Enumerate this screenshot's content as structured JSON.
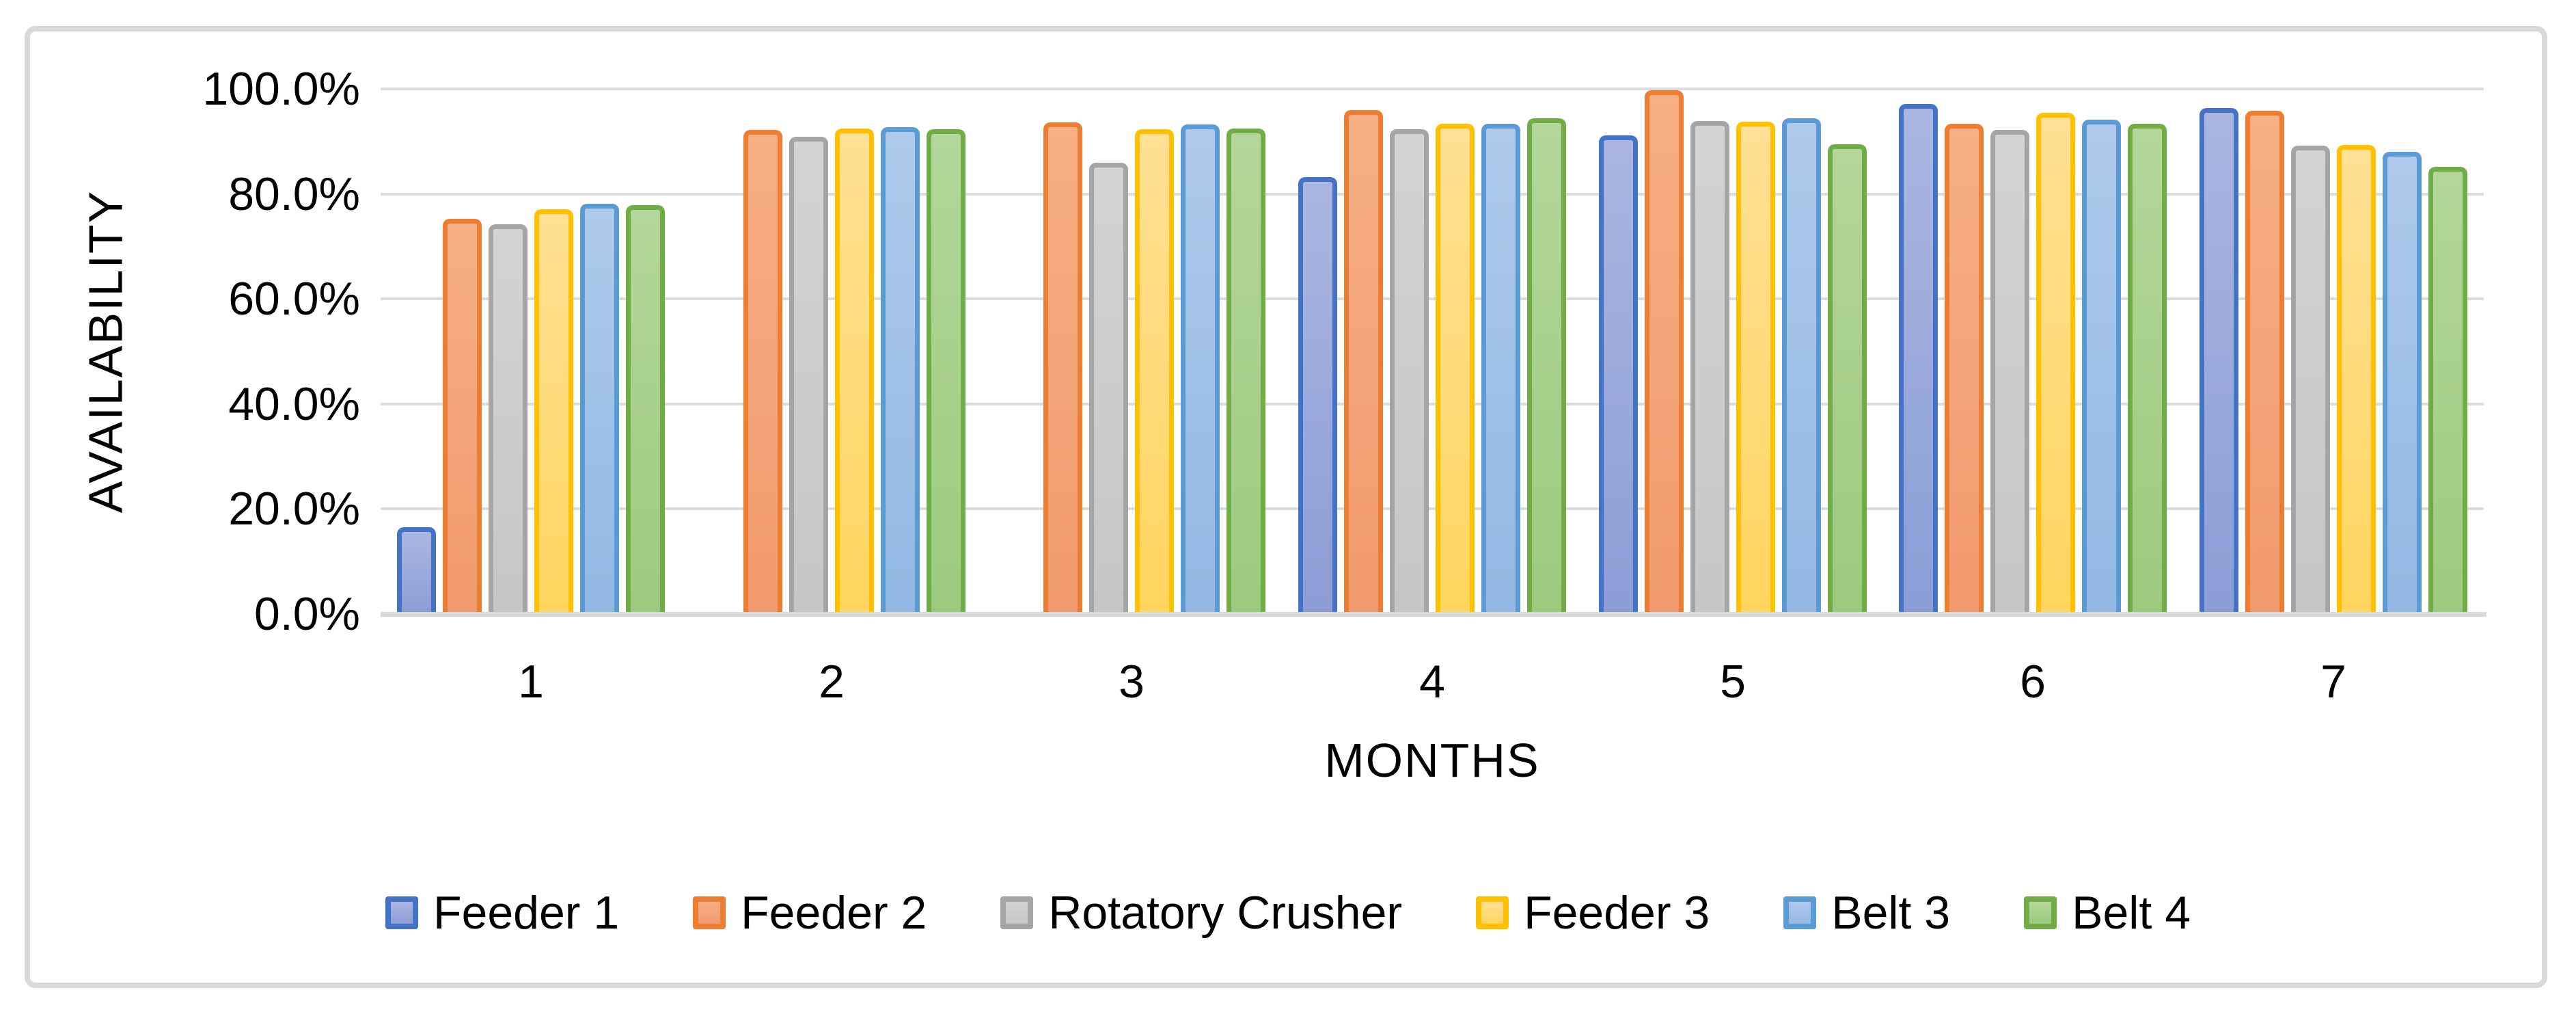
{
  "chart_data": {
    "type": "bar",
    "title": "",
    "xlabel": "MONTHS",
    "ylabel": "AVAILABILITY",
    "categories": [
      "1",
      "2",
      "3",
      "4",
      "5",
      "6",
      "7"
    ],
    "ylim": [
      0,
      100
    ],
    "grid": true,
    "legend_position": "bottom",
    "y_ticks": [
      {
        "label": "100.0%",
        "value": 100
      },
      {
        "label": "80.0%",
        "value": 80
      },
      {
        "label": "60.0%",
        "value": 60
      },
      {
        "label": "40.0%",
        "value": 40
      },
      {
        "label": "20.0%",
        "value": 20
      },
      {
        "label": "0.0%",
        "value": 0
      }
    ],
    "series": [
      {
        "name": "Feeder 1",
        "values": [
          16.6,
          null,
          null,
          83.2,
          91.2,
          97.2,
          96.3
        ],
        "border_color": "#4472C4",
        "fill_top": "#AAB6E1",
        "fill_bottom": "#8C9DD6"
      },
      {
        "name": "Feeder 2",
        "values": [
          75.3,
          92.2,
          93.6,
          96.0,
          99.8,
          93.4,
          95.8
        ],
        "border_color": "#ED7D31",
        "fill_top": "#F7AF86",
        "fill_bottom": "#F09A6D"
      },
      {
        "name": "Rotatory Crusher",
        "values": [
          74.2,
          90.9,
          86.0,
          92.3,
          93.9,
          92.2,
          89.2
        ],
        "border_color": "#A5A5A5",
        "fill_top": "#D3D3D3",
        "fill_bottom": "#C6C6C6"
      },
      {
        "name": "Feeder 3",
        "values": [
          77.1,
          92.4,
          92.3,
          93.4,
          93.7,
          95.4,
          89.3
        ],
        "border_color": "#FFC000",
        "fill_top": "#FFE095",
        "fill_bottom": "#FFD55F"
      },
      {
        "name": "Belt 3",
        "values": [
          78.1,
          92.7,
          93.2,
          93.3,
          94.4,
          94.2,
          88.0
        ],
        "border_color": "#5B9BD5",
        "fill_top": "#AECAEA",
        "fill_bottom": "#92B8E4"
      },
      {
        "name": "Belt 4",
        "values": [
          77.9,
          92.3,
          92.4,
          94.4,
          89.4,
          93.3,
          85.2
        ],
        "border_color": "#70AD47",
        "fill_top": "#B3D79B",
        "fill_bottom": "#9CCA7D"
      }
    ],
    "colors": {
      "gridline": "#DCDCDC",
      "axis_line": "#D9D9D9",
      "frame_border": "#D9D9D9",
      "text": "#000000"
    }
  }
}
